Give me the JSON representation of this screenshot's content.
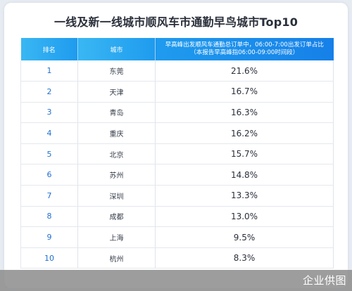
{
  "title": "一线及新一线城市顺风车市通勤早鸟城市Top10",
  "watermark": "企业供图",
  "chart_data": {
    "type": "table",
    "columns": [
      "排名",
      "城市",
      "早高峰出发顺风车通勤总订单中，06:00-7:00出发订单占比",
      "（本报告早高峰指06:00-09:00时间段）"
    ],
    "rows": [
      {
        "rank": "1",
        "city": "东莞",
        "share": "21.6%"
      },
      {
        "rank": "2",
        "city": "天津",
        "share": "16.7%"
      },
      {
        "rank": "3",
        "city": "青岛",
        "share": "16.3%"
      },
      {
        "rank": "4",
        "city": "重庆",
        "share": "16.2%"
      },
      {
        "rank": "5",
        "city": "北京",
        "share": "15.7%"
      },
      {
        "rank": "6",
        "city": "苏州",
        "share": "14.8%"
      },
      {
        "rank": "7",
        "city": "深圳",
        "share": "13.3%"
      },
      {
        "rank": "8",
        "city": "成都",
        "share": "13.0%"
      },
      {
        "rank": "9",
        "city": "上海",
        "share": "9.5%"
      },
      {
        "rank": "10",
        "city": "杭州",
        "share": "8.3%"
      }
    ]
  }
}
